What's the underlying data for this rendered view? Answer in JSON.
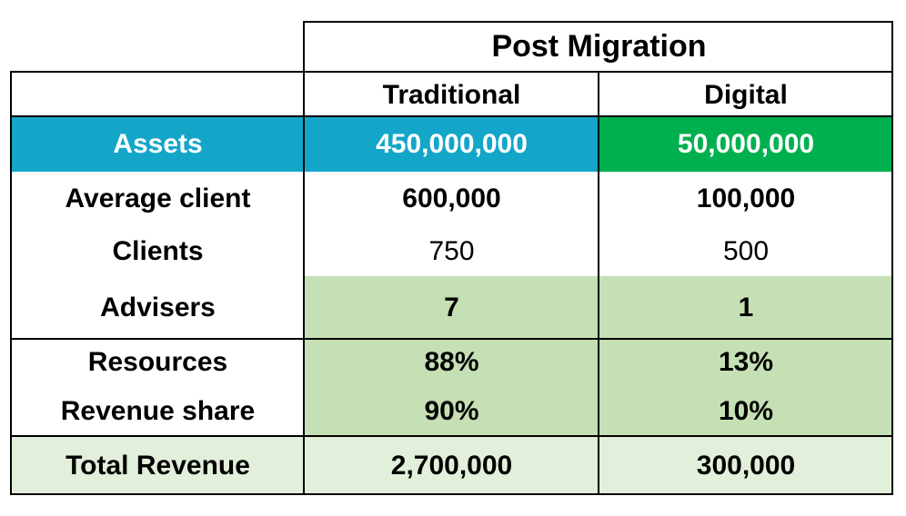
{
  "header": {
    "group_title": "Post Migration",
    "columns": [
      "Traditional",
      "Digital"
    ]
  },
  "rows": [
    {
      "label": "Assets",
      "traditional": "450,000,000",
      "digital": "50,000,000"
    },
    {
      "label": "Average client",
      "traditional": "600,000",
      "digital": "100,000"
    },
    {
      "label": "Clients",
      "traditional": "750",
      "digital": "500"
    },
    {
      "label": "Advisers",
      "traditional": "7",
      "digital": "1"
    },
    {
      "label": "Resources",
      "traditional": "88%",
      "digital": "13%"
    },
    {
      "label": "Revenue share",
      "traditional": "90%",
      "digital": "10%"
    },
    {
      "label": "Total Revenue",
      "traditional": "2,700,000",
      "digital": "300,000"
    }
  ],
  "colors": {
    "assets_label": "#13a6c9",
    "assets_traditional": "#13a6c9",
    "assets_digital": "#00b04f",
    "highlight_green": "#c5e0b4",
    "total_row": "#e2efda"
  }
}
